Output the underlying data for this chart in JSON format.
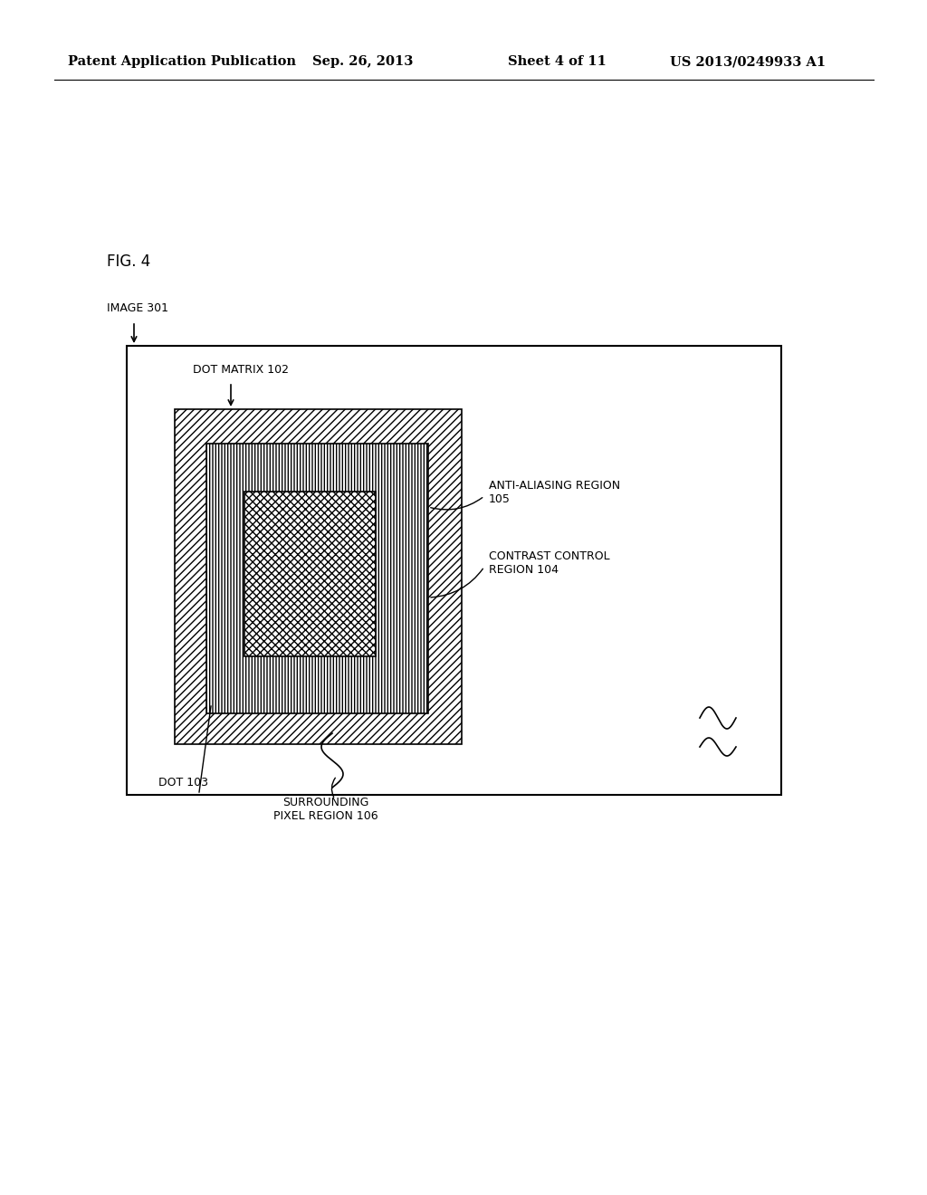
{
  "title_header": "Patent Application Publication",
  "date_header": "Sep. 26, 2013",
  "sheet_header": "Sheet 4 of 11",
  "patent_header": "US 2013/0249933 A1",
  "fig_label": "FIG. 4",
  "bg_color": "#ffffff",
  "labels": {
    "image": "IMAGE 301",
    "dot_matrix": "DOT MATRIX 102",
    "dot": "DOT 103",
    "anti_aliasing": "ANTI-ALIASING REGION\n105",
    "contrast_control": "CONTRAST CONTROL\nREGION 104",
    "surrounding": "SURROUNDING\nPIXEL REGION 106"
  }
}
